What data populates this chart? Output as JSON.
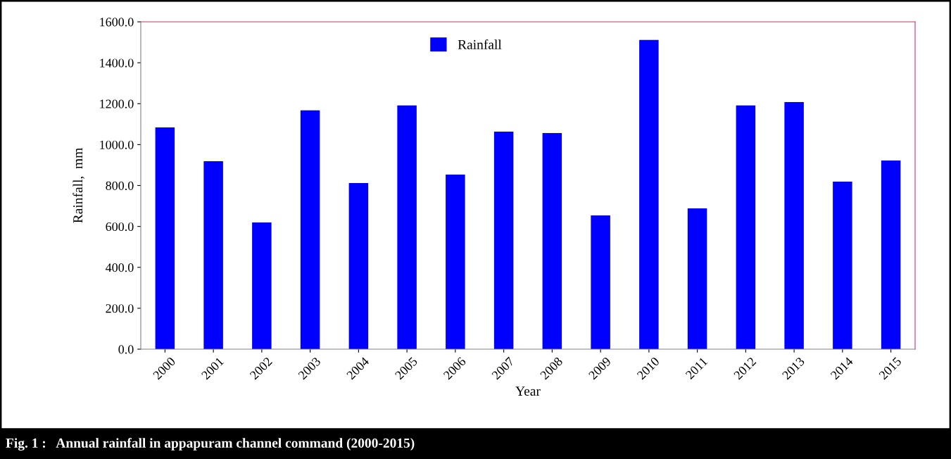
{
  "chart_data": {
    "type": "bar",
    "title": "Fig. 1 :   Annual rainfall in appapuram channel command (2000-2015)",
    "xlabel": "Year",
    "ylabel": "Rainfall,  mm",
    "categories": [
      "2000",
      "2001",
      "2002",
      "2003",
      "2004",
      "2005",
      "2006",
      "2007",
      "2008",
      "2009",
      "2010",
      "2011",
      "2012",
      "2013",
      "2014",
      "2015"
    ],
    "series": [
      {
        "name": "Rainfall",
        "color": "#0000ff",
        "values": [
          1084,
          919,
          619,
          1167,
          812,
          1191,
          853,
          1063,
          1056,
          654,
          1511,
          688,
          1191,
          1208,
          819,
          922
        ]
      }
    ],
    "ylim": [
      0,
      1600
    ],
    "yticks": [
      {
        "value": 0,
        "label": "0.0"
      },
      {
        "value": 200,
        "label": "200.0"
      },
      {
        "value": 400,
        "label": "400.0"
      },
      {
        "value": 600,
        "label": "600.0"
      },
      {
        "value": 800,
        "label": "800.0"
      },
      {
        "value": 1000,
        "label": "1000.0"
      },
      {
        "value": 1200,
        "label": "1200.0"
      },
      {
        "value": 1400,
        "label": "1400.0"
      },
      {
        "value": 1600,
        "label": "1600.0"
      }
    ],
    "grid": false,
    "legend": "top center"
  }
}
